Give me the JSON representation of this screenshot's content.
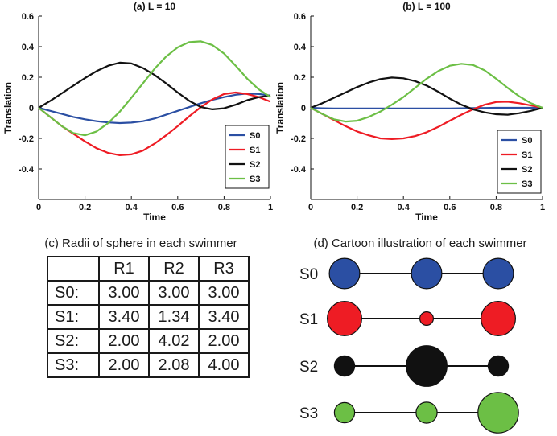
{
  "colors": {
    "S0": "#2b4fa3",
    "S1": "#ee1c24",
    "S2": "#111111",
    "S3": "#6cbf45"
  },
  "chart_data": [
    {
      "type": "line",
      "title": "(a) L = 10",
      "xlabel": "Time",
      "ylabel": "Translation",
      "xlim": [
        0,
        1
      ],
      "ylim": [
        -0.6,
        0.6
      ],
      "xticks": [
        "0",
        "0.2",
        "0.4",
        "0.6",
        "0.8",
        "1"
      ],
      "yticks": [
        "-0.4",
        "-0.2",
        "0",
        "0.2",
        "0.4",
        "0.6"
      ],
      "legend": "bottom-right",
      "x": [
        0,
        0.05,
        0.1,
        0.15,
        0.2,
        0.25,
        0.3,
        0.35,
        0.4,
        0.45,
        0.5,
        0.55,
        0.6,
        0.65,
        0.7,
        0.75,
        0.8,
        0.85,
        0.9,
        0.95,
        1.0
      ],
      "series": [
        {
          "name": "S0",
          "color": "#2b4fa3",
          "values": [
            0,
            -0.02,
            -0.04,
            -0.06,
            -0.075,
            -0.088,
            -0.096,
            -0.1,
            -0.097,
            -0.088,
            -0.07,
            -0.045,
            -0.02,
            0.005,
            0.03,
            0.052,
            0.07,
            0.085,
            0.093,
            0.09,
            0.08
          ]
        },
        {
          "name": "S1",
          "color": "#ee1c24",
          "values": [
            0,
            -0.06,
            -0.12,
            -0.17,
            -0.22,
            -0.265,
            -0.295,
            -0.31,
            -0.305,
            -0.28,
            -0.235,
            -0.18,
            -0.12,
            -0.055,
            0.005,
            0.055,
            0.09,
            0.1,
            0.09,
            0.07,
            0.04
          ]
        },
        {
          "name": "S2",
          "color": "#111111",
          "values": [
            0,
            0.045,
            0.095,
            0.145,
            0.195,
            0.24,
            0.275,
            0.295,
            0.29,
            0.26,
            0.215,
            0.16,
            0.1,
            0.045,
            0.005,
            -0.01,
            -0.003,
            0.02,
            0.05,
            0.07,
            0.08
          ]
        },
        {
          "name": "S3",
          "color": "#6cbf45",
          "values": [
            0,
            -0.06,
            -0.12,
            -0.165,
            -0.18,
            -0.155,
            -0.1,
            -0.025,
            0.065,
            0.16,
            0.255,
            0.335,
            0.395,
            0.43,
            0.435,
            0.41,
            0.355,
            0.275,
            0.19,
            0.12,
            0.07
          ]
        }
      ]
    },
    {
      "type": "line",
      "title": "(b) L = 100",
      "xlabel": "Time",
      "ylabel": "Translation",
      "xlim": [
        0,
        1
      ],
      "ylim": [
        -0.6,
        0.6
      ],
      "xticks": [
        "0",
        "0.2",
        "0.4",
        "0.6",
        "0.8",
        "1"
      ],
      "yticks": [
        "-0.4",
        "-0.2",
        "0",
        "0.2",
        "0.4",
        "0.6"
      ],
      "legend": "bottom-right",
      "x": [
        0,
        0.05,
        0.1,
        0.15,
        0.2,
        0.25,
        0.3,
        0.35,
        0.4,
        0.45,
        0.5,
        0.55,
        0.6,
        0.65,
        0.7,
        0.75,
        0.8,
        0.85,
        0.9,
        0.95,
        1.0
      ],
      "series": [
        {
          "name": "S0",
          "color": "#2b4fa3",
          "values": [
            0,
            -0.003,
            -0.005,
            -0.005,
            -0.005,
            -0.005,
            -0.005,
            -0.005,
            -0.005,
            -0.005,
            -0.005,
            -0.005,
            -0.004,
            -0.003,
            -0.002,
            -0.001,
            0,
            0,
            0,
            0,
            0
          ]
        },
        {
          "name": "S1",
          "color": "#ee1c24",
          "values": [
            0,
            -0.04,
            -0.08,
            -0.12,
            -0.155,
            -0.18,
            -0.2,
            -0.205,
            -0.2,
            -0.185,
            -0.16,
            -0.125,
            -0.085,
            -0.045,
            -0.01,
            0.02,
            0.038,
            0.04,
            0.03,
            0.015,
            0
          ]
        },
        {
          "name": "S2",
          "color": "#111111",
          "values": [
            0,
            0.03,
            0.065,
            0.1,
            0.135,
            0.165,
            0.188,
            0.198,
            0.193,
            0.175,
            0.145,
            0.105,
            0.06,
            0.02,
            -0.01,
            -0.03,
            -0.042,
            -0.045,
            -0.035,
            -0.02,
            0
          ]
        },
        {
          "name": "S3",
          "color": "#6cbf45",
          "values": [
            0,
            -0.04,
            -0.075,
            -0.09,
            -0.085,
            -0.06,
            -0.025,
            0.02,
            0.07,
            0.13,
            0.19,
            0.24,
            0.275,
            0.288,
            0.28,
            0.245,
            0.19,
            0.13,
            0.075,
            0.03,
            0
          ]
        }
      ]
    }
  ],
  "radii_table": {
    "title": "(c) Radii of sphere in each swimmer",
    "columns": [
      "R1",
      "R2",
      "R3"
    ],
    "rows": [
      {
        "label": "S0:",
        "values": [
          "3.00",
          "3.00",
          "3.00"
        ]
      },
      {
        "label": "S1:",
        "values": [
          "3.40",
          "1.34",
          "3.40"
        ]
      },
      {
        "label": "S2:",
        "values": [
          "2.00",
          "4.02",
          "2.00"
        ]
      },
      {
        "label": "S3:",
        "values": [
          "2.00",
          "2.08",
          "4.00"
        ]
      }
    ]
  },
  "cartoon": {
    "title": "(d) Cartoon illustration of each swimmer",
    "swimmers": [
      {
        "label": "S0",
        "color": "#2b4fa3",
        "radii": [
          3.0,
          3.0,
          3.0
        ]
      },
      {
        "label": "S1",
        "color": "#ee1c24",
        "radii": [
          3.4,
          1.34,
          3.4
        ]
      },
      {
        "label": "S2",
        "color": "#111111",
        "radii": [
          2.0,
          4.02,
          2.0
        ]
      },
      {
        "label": "S3",
        "color": "#6cbf45",
        "radii": [
          2.0,
          2.08,
          4.0
        ]
      }
    ]
  }
}
